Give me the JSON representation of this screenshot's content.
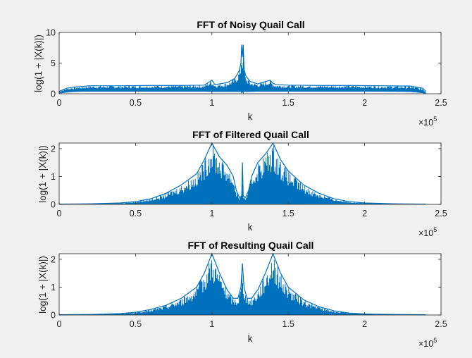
{
  "figure": {
    "background": "#f0f0f0",
    "series_color": "#0072bd"
  },
  "chart_data": [
    {
      "type": "line",
      "title": "FFT of Noisy Quail Call",
      "xlabel": "k",
      "ylabel": "log(1 + |X(k)|)",
      "x_exponent_base": "×10",
      "x_exponent_power": "5",
      "xlim": [
        0,
        250000
      ],
      "ylim": [
        0,
        10
      ],
      "xticks": [
        0,
        50000,
        100000,
        150000,
        200000,
        250000
      ],
      "xtick_labels": [
        "0",
        "0.5",
        "1",
        "1.5",
        "2",
        "2.5"
      ],
      "yticks": [
        0,
        5,
        10
      ],
      "ytick_labels": [
        "0",
        "5",
        "10"
      ],
      "x": [
        0,
        2000,
        5000,
        10000,
        20000,
        40000,
        60000,
        80000,
        95000,
        100000,
        102000,
        110000,
        115000,
        118000,
        119000,
        119500,
        120000,
        120500,
        121000,
        122000,
        125000,
        130000,
        138000,
        140000,
        142000,
        150000,
        170000,
        190000,
        210000,
        230000,
        238000,
        240000
      ],
      "upper_envelope": [
        0.4,
        0.6,
        0.9,
        1.1,
        1.3,
        1.3,
        1.35,
        1.35,
        1.4,
        2.2,
        1.5,
        1.8,
        2.5,
        3.8,
        5.0,
        8.0,
        6.0,
        8.0,
        4.5,
        3.0,
        2.0,
        1.6,
        2.2,
        1.7,
        1.5,
        1.4,
        1.35,
        1.35,
        1.3,
        1.25,
        0.9,
        0.4
      ],
      "lower_envelope": [
        0.1,
        0.1,
        0.2,
        0.3,
        0.35,
        0.35,
        0.35,
        0.35,
        0.35,
        0.3,
        0.3,
        0.3,
        0.3,
        0.3,
        0.3,
        0.0,
        0.3,
        0.0,
        0.3,
        0.3,
        0.3,
        0.35,
        0.35,
        0.35,
        0.35,
        0.35,
        0.35,
        0.35,
        0.35,
        0.3,
        0.1,
        0.0
      ],
      "grid": false,
      "legend": "none"
    },
    {
      "type": "line",
      "title": "FFT of Filtered Quail Call",
      "xlabel": "k",
      "ylabel": "log(1 + |X(k)|)",
      "x_exponent_base": "×10",
      "x_exponent_power": "5",
      "xlim": [
        0,
        250000
      ],
      "ylim": [
        0,
        2.2
      ],
      "xticks": [
        0,
        50000,
        100000,
        150000,
        200000,
        250000
      ],
      "xtick_labels": [
        "0",
        "0.5",
        "1",
        "1.5",
        "2",
        "2.5"
      ],
      "yticks": [
        0,
        1,
        2
      ],
      "ytick_labels": [
        "0",
        "1",
        "2"
      ],
      "x": [
        0,
        20000,
        40000,
        50000,
        60000,
        70000,
        80000,
        90000,
        95000,
        100000,
        105000,
        110000,
        114000,
        116000,
        118000,
        119500,
        120000,
        120500,
        122000,
        124000,
        126000,
        130000,
        135000,
        140000,
        145000,
        150000,
        160000,
        170000,
        180000,
        190000,
        200000,
        220000,
        240000
      ],
      "upper_envelope": [
        0.01,
        0.02,
        0.05,
        0.1,
        0.2,
        0.4,
        0.7,
        1.1,
        1.6,
        2.2,
        1.7,
        1.4,
        1.0,
        0.5,
        0.25,
        0.3,
        1.5,
        0.3,
        0.25,
        0.5,
        1.0,
        1.5,
        1.8,
        2.2,
        1.6,
        1.2,
        0.7,
        0.4,
        0.2,
        0.1,
        0.05,
        0.02,
        0.01
      ],
      "lower_envelope": [
        0,
        0,
        0,
        0,
        0,
        0,
        0,
        0,
        0,
        0,
        0,
        0,
        0,
        0,
        0,
        0,
        0,
        0,
        0,
        0,
        0,
        0,
        0,
        0,
        0,
        0,
        0,
        0,
        0,
        0,
        0,
        0,
        0
      ],
      "grid": false,
      "legend": "none"
    },
    {
      "type": "line",
      "title": "FFT of Resulting Quail Call",
      "xlabel": "k",
      "ylabel": "log(1 + |X(k)|)",
      "x_exponent_base": "×10",
      "x_exponent_power": "5",
      "xlim": [
        0,
        250000
      ],
      "ylim": [
        0,
        2.2
      ],
      "xticks": [
        0,
        50000,
        100000,
        150000,
        200000,
        250000
      ],
      "xtick_labels": [
        "0",
        "0.5",
        "1",
        "1.5",
        "2",
        "2.5"
      ],
      "yticks": [
        0,
        1,
        2
      ],
      "ytick_labels": [
        "0",
        "1",
        "2"
      ],
      "x": [
        0,
        20000,
        40000,
        50000,
        60000,
        70000,
        80000,
        90000,
        95000,
        100000,
        105000,
        110000,
        114000,
        117000,
        119000,
        120000,
        121000,
        123000,
        126000,
        130000,
        135000,
        140000,
        145000,
        150000,
        160000,
        170000,
        180000,
        190000,
        200000,
        220000,
        240000
      ],
      "upper_envelope": [
        0.01,
        0.02,
        0.05,
        0.1,
        0.2,
        0.35,
        0.6,
        1.0,
        1.5,
        2.2,
        1.5,
        0.9,
        0.6,
        0.6,
        1.0,
        1.85,
        1.0,
        0.6,
        0.6,
        0.9,
        1.5,
        2.2,
        1.5,
        1.0,
        0.55,
        0.3,
        0.15,
        0.07,
        0.04,
        0.02,
        0.01
      ],
      "lower_envelope": [
        0,
        0,
        0,
        0,
        0,
        0,
        0,
        0,
        0,
        0,
        0,
        0,
        0,
        0,
        0,
        0,
        0,
        0,
        0,
        0,
        0,
        0,
        0,
        0,
        0,
        0,
        0,
        0,
        0,
        0,
        0
      ],
      "grid": false,
      "legend": "none"
    }
  ]
}
